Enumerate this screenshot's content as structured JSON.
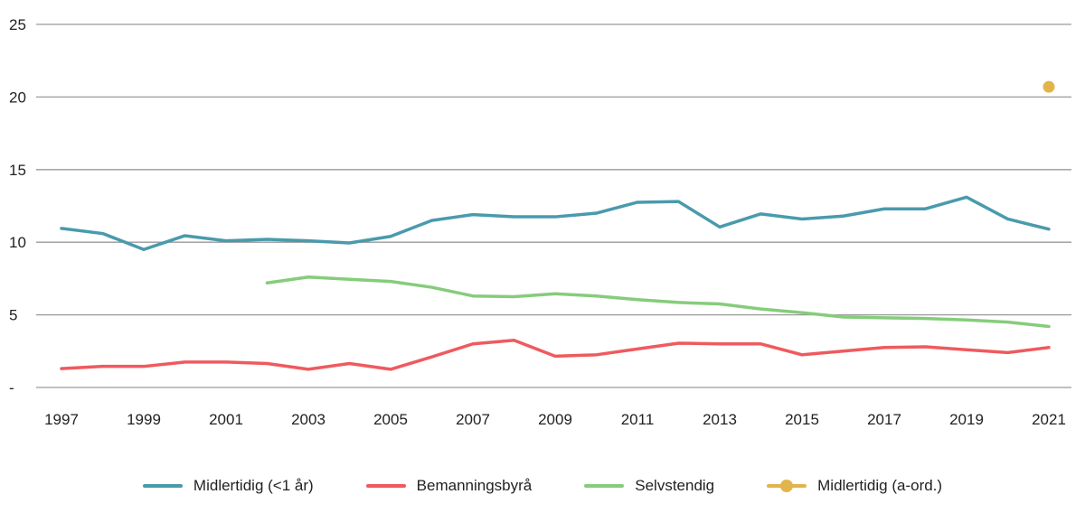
{
  "chart_data": {
    "type": "line",
    "title": "",
    "xlabel": "",
    "ylabel": "",
    "ylim": [
      0,
      25
    ],
    "yticks": [
      {
        "v": 0,
        "label": "-"
      },
      {
        "v": 5,
        "label": "5"
      },
      {
        "v": 10,
        "label": "10"
      },
      {
        "v": 15,
        "label": "15"
      },
      {
        "v": 20,
        "label": "20"
      },
      {
        "v": 25,
        "label": "25"
      }
    ],
    "xticks": [
      "1997",
      "1999",
      "2001",
      "2003",
      "2005",
      "2007",
      "2009",
      "2011",
      "2013",
      "2015",
      "2017",
      "2019",
      "2021"
    ],
    "grid": true,
    "legend_position": "bottom",
    "x": [
      1997,
      1998,
      1999,
      2000,
      2001,
      2002,
      2003,
      2004,
      2005,
      2006,
      2007,
      2008,
      2009,
      2010,
      2011,
      2012,
      2013,
      2014,
      2015,
      2016,
      2017,
      2018,
      2019,
      2020,
      2021
    ],
    "series": [
      {
        "name": "Midlertidig (<1 år)",
        "color": "#4a9aad",
        "type": "line",
        "values": [
          10.95,
          10.6,
          9.5,
          10.45,
          10.1,
          10.2,
          10.1,
          9.95,
          10.4,
          11.5,
          11.9,
          11.75,
          11.75,
          12.0,
          12.75,
          12.8,
          11.05,
          11.95,
          11.6,
          11.8,
          12.3,
          12.3,
          13.1,
          11.6,
          10.9
        ]
      },
      {
        "name": "Bemanningsbyrå",
        "color": "#ef5a5e",
        "type": "line",
        "values": [
          1.3,
          1.45,
          1.45,
          1.75,
          1.75,
          1.65,
          1.25,
          1.65,
          1.25,
          2.1,
          3.0,
          3.25,
          2.15,
          2.25,
          2.65,
          3.05,
          3.0,
          3.0,
          2.25,
          2.5,
          2.75,
          2.8,
          2.6,
          2.4,
          2.75
        ]
      },
      {
        "name": "Selvstendig",
        "color": "#86cc7b",
        "type": "line",
        "values": [
          null,
          null,
          null,
          null,
          null,
          7.2,
          7.6,
          7.45,
          7.3,
          6.9,
          6.3,
          6.25,
          6.45,
          6.3,
          6.05,
          5.85,
          5.75,
          5.4,
          5.15,
          4.85,
          4.8,
          4.75,
          4.65,
          4.5,
          4.2
        ]
      },
      {
        "name": "Midlertidig (a-ord.)",
        "color": "#e2b44a",
        "type": "point",
        "values": [
          null,
          null,
          null,
          null,
          null,
          null,
          null,
          null,
          null,
          null,
          null,
          null,
          null,
          null,
          null,
          null,
          null,
          null,
          null,
          null,
          null,
          null,
          null,
          null,
          20.7
        ]
      }
    ]
  }
}
